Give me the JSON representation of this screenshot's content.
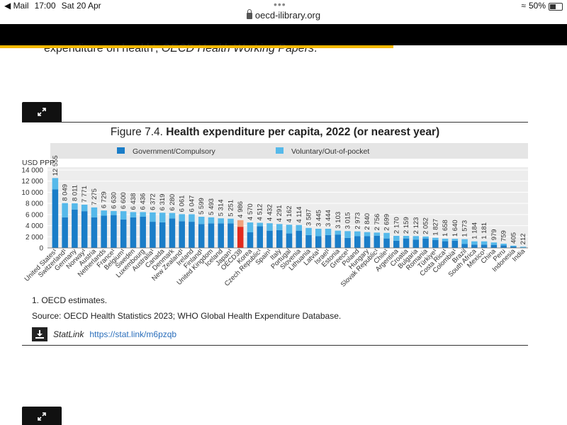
{
  "statusbar": {
    "back_app": "◀ Mail",
    "time": "17:00",
    "date": "Sat 20 Apr",
    "battery": "50%"
  },
  "browser": {
    "url": "oecd-ilibrary.org"
  },
  "page": {
    "top_text_plain": "expenditure on health', ",
    "top_text_italic": "OECD Health Working Papers",
    "top_text_end": ".",
    "figure_title_prefix": "Figure 7.4. ",
    "figure_title_bold": "Health expenditure per capita, 2022 (or nearest year)",
    "note": "1. OECD estimates.",
    "source": "Source: OECD Health Statistics 2023; WHO Global Health Expenditure Database.",
    "statlink_label": "StatLink",
    "statlink_url": "https://stat.link/m6pzqb"
  },
  "colors": {
    "government": "#1a7dc8",
    "voluntary": "#56b9ea",
    "oecd_highlight_gov": "#e32b1e",
    "oecd_highlight_vol": "#f0a27c",
    "legend_bg": "#e5e5e5",
    "plot_bg": "#ededed"
  },
  "chart_data": {
    "type": "bar",
    "stacked": true,
    "ylabel": "USD PPP",
    "ylim": [
      0,
      14000
    ],
    "yticks": [
      0,
      2000,
      4000,
      6000,
      8000,
      10000,
      12000,
      14000
    ],
    "ytick_labels": [
      "0",
      "2 000",
      "4 000",
      "6 000",
      "8 000",
      "10 000",
      "12 000",
      "14 000"
    ],
    "legend": [
      "Government/Compulsory",
      "Voluntary/Out-of-pocket"
    ],
    "legend_position": "top",
    "categories": [
      "United States¹",
      "Switzerland¹",
      "Germany",
      "Norway¹",
      "Austria",
      "Netherlands",
      "France¹",
      "Belgium¹",
      "Sweden",
      "Luxembourg",
      "Australia¹",
      "Canada",
      "Denmark",
      "New Zealand¹",
      "Ireland",
      "Finland¹",
      "United Kingdom",
      "Iceland",
      "Japan¹",
      "OECD38",
      "Korea",
      "Czech Republic¹",
      "Spain¹",
      "Italy",
      "Portugal",
      "Slovenia",
      "Lithuania",
      "Latvia¹",
      "Israel¹",
      "Estonia",
      "Greece¹",
      "Poland",
      "Hungary",
      "Slovak Republic¹",
      "Chile¹",
      "Argentina",
      "Croatia",
      "Bulgaria",
      "Romania",
      "Türkiye¹",
      "Costa Rica¹",
      "Colombia¹",
      "Brazil",
      "South Africa",
      "Mexico¹",
      "China",
      "Peru",
      "Indonesia",
      "India"
    ],
    "totals": [
      12555,
      8049,
      8011,
      7771,
      7275,
      6729,
      6630,
      6600,
      6438,
      6436,
      6372,
      6319,
      6280,
      6061,
      6047,
      5599,
      5493,
      5314,
      5251,
      4986,
      4570,
      4512,
      4432,
      4291,
      4162,
      4114,
      3587,
      3445,
      3444,
      3103,
      3015,
      2973,
      2840,
      2756,
      2699,
      2170,
      2159,
      2123,
      2052,
      1827,
      1658,
      1640,
      1573,
      1184,
      1181,
      979,
      759,
      405,
      212
    ],
    "total_labels": [
      "12 555",
      "8 049",
      "8 011",
      "7 771",
      "7 275",
      "6 729",
      "6 630",
      "6 600",
      "6 438",
      "6 436",
      "6 372",
      "6 319",
      "6 280",
      "6 061",
      "6 047",
      "5 599",
      "5 493",
      "5 314",
      "5 251",
      "4 986",
      "4 570",
      "4 512",
      "4 432",
      "4 291",
      "4 162",
      "4 114",
      "3 587",
      "3 445",
      "3 444",
      "3 103",
      "3 015",
      "2 973",
      "2 840",
      "2 756",
      "2 699",
      "2 170",
      "2 159",
      "2 123",
      "2 052",
      "1 827",
      "1 658",
      "1 640",
      "1 573",
      "1 184",
      "1 181",
      "979",
      "759",
      "405",
      "212"
    ],
    "series": [
      {
        "name": "Government/Compulsory",
        "values": [
          10500,
          5500,
          6900,
          6600,
          5500,
          5800,
          5900,
          5100,
          5500,
          5600,
          4700,
          4600,
          5300,
          4800,
          4700,
          4300,
          4400,
          4400,
          4400,
          3800,
          2800,
          3900,
          3100,
          3200,
          2600,
          3100,
          2300,
          2100,
          2300,
          2400,
          1800,
          2100,
          2100,
          2200,
          1700,
          1300,
          1700,
          1500,
          1700,
          1400,
          1200,
          1300,
          700,
          600,
          600,
          550,
          480,
          250,
          80
        ]
      },
      {
        "name": "Voluntary/Out-of-pocket",
        "values": [
          2055,
          2549,
          1111,
          1171,
          1775,
          929,
          730,
          1500,
          938,
          836,
          1672,
          1719,
          980,
          1261,
          1347,
          1299,
          1093,
          914,
          851,
          1186,
          1770,
          612,
          1332,
          1091,
          1562,
          1014,
          1287,
          1345,
          1144,
          703,
          1215,
          873,
          740,
          556,
          999,
          870,
          459,
          623,
          352,
          427,
          458,
          340,
          873,
          584,
          581,
          429,
          279,
          155,
          132
        ]
      }
    ],
    "highlight_category": "OECD38"
  }
}
